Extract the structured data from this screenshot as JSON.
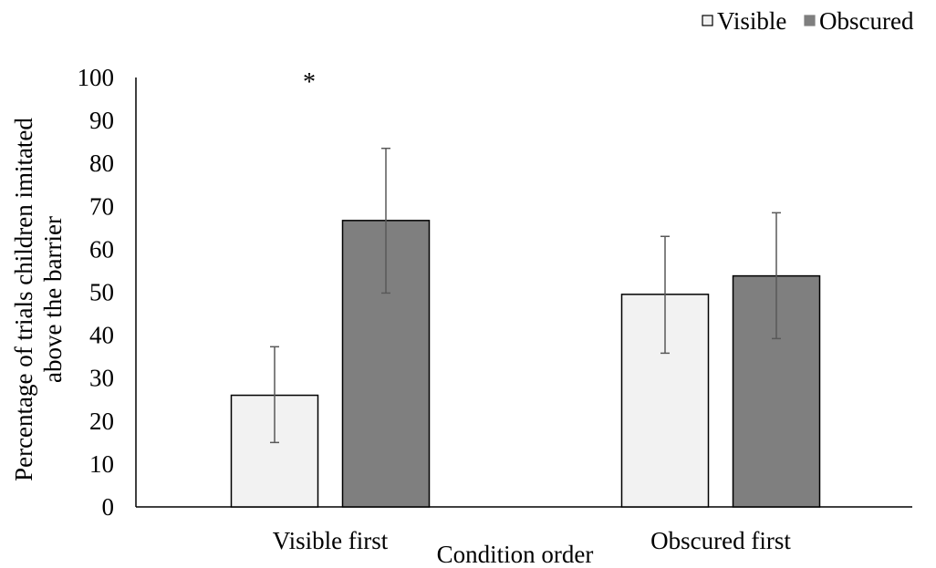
{
  "chart_data": {
    "type": "bar",
    "title": "",
    "xlabel": "Condition order",
    "ylabel_lines": [
      "Percentage of trials children imitated",
      "above the barrier"
    ],
    "ylim": [
      0,
      100
    ],
    "yticks": [
      0,
      10,
      20,
      30,
      40,
      50,
      60,
      70,
      80,
      90,
      100
    ],
    "categories": [
      "Visible first",
      "Obscured first"
    ],
    "series": [
      {
        "name": "Visible",
        "color": "#f2f2f2",
        "values": [
          26,
          49.5
        ],
        "error_low": [
          15,
          35.8
        ],
        "error_high": [
          37.3,
          63
        ]
      },
      {
        "name": "Obscured",
        "color": "#7f7f7f",
        "values": [
          66.7,
          53.8
        ],
        "error_low": [
          49.8,
          39.2
        ],
        "error_high": [
          83.5,
          68.5
        ]
      }
    ],
    "annotations": [
      {
        "text": "*",
        "category": "Visible first"
      }
    ],
    "legend_position": "top-right",
    "grid": false
  }
}
